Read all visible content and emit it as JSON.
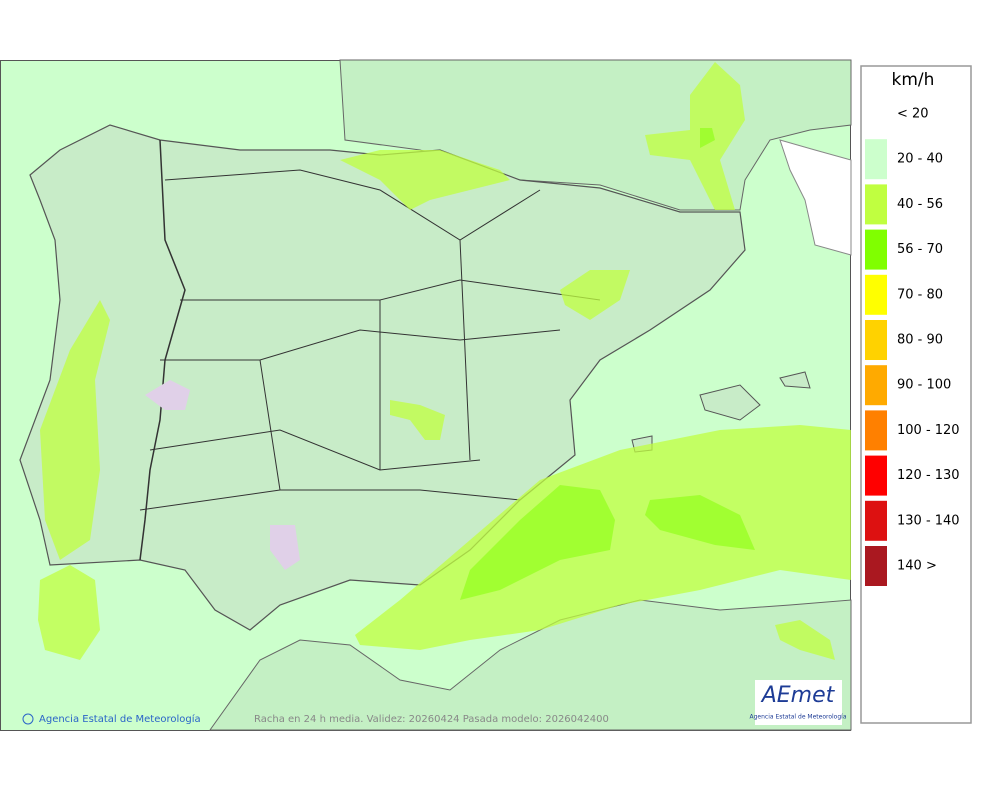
{
  "legend": {
    "unit": "km/h",
    "items": [
      {
        "label": "< 20"
      },
      {
        "label": "20 - 40",
        "color": "#ccffcc"
      },
      {
        "label": "40 - 56",
        "color": "#c0ff40"
      },
      {
        "label": "56 - 70",
        "color": "#80ff00"
      },
      {
        "label": "70 - 80",
        "color": "#ffff00"
      },
      {
        "label": "80 - 90",
        "color": "#ffd200"
      },
      {
        "label": "90 - 100",
        "color": "#ffaa00"
      },
      {
        "label": "100 - 120",
        "color": "#ff8000"
      },
      {
        "label": "120 - 130",
        "color": "#ff0000"
      },
      {
        "label": "130 - 140",
        "color": "#dd1111"
      },
      {
        "label": "140 >",
        "color": "#aa1820"
      }
    ]
  },
  "footer": {
    "agency": "Agencia Estatal de Meteorología",
    "caption": "Racha en 24 h media. Validez: 20260424 Pasada modelo: 2026042400"
  },
  "logo": {
    "name": "AEmet",
    "subtitle": "Agencia Estatal de Meteorología"
  }
}
